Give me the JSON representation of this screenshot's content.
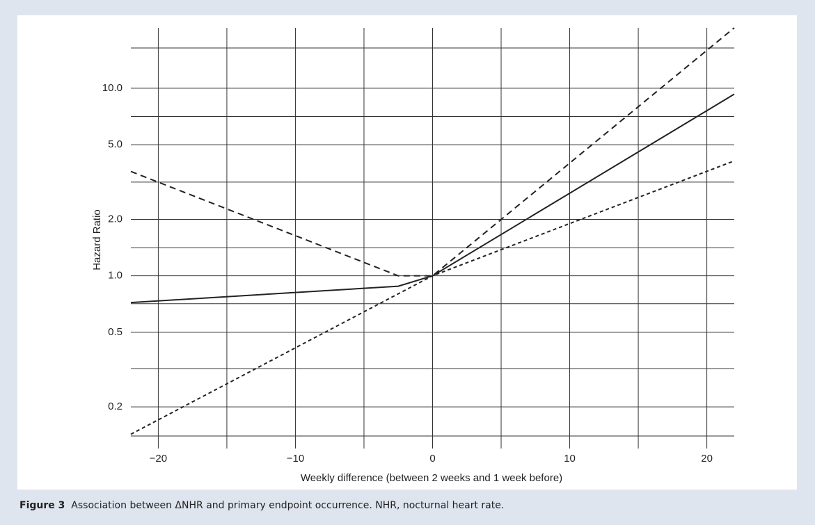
{
  "chart_data": {
    "type": "line",
    "log_y": true,
    "grid": true,
    "color": "#222222",
    "y_label": "Hazard Ratio",
    "x_label": "Weekly difference (between 2 weeks and 1 week before)",
    "xlim": [
      -22,
      22
    ],
    "xticks": [
      {
        "value": -20,
        "label": "−20"
      },
      {
        "value": -10,
        "label": "−10"
      },
      0,
      10,
      20
    ],
    "minor_xgrid": [
      -15,
      -5,
      5,
      15
    ],
    "ylim": [
      0.12,
      21
    ],
    "yticks": [
      {
        "value": 10,
        "label": "10.0"
      },
      {
        "value": 5,
        "label": "5.0"
      },
      {
        "value": 2,
        "label": "2.0"
      },
      {
        "value": 1,
        "label": "1.0"
      },
      0.5,
      0.2
    ],
    "minor_ygrid": [
      16.4,
      7.07,
      3.16,
      1.41,
      0.71,
      0.32,
      0.14
    ],
    "series": [
      {
        "dash": "9,6",
        "x": [
          -22,
          -2.5,
          0,
          22
        ],
        "values": [
          3.6,
          1.0,
          1.0,
          21
        ]
      },
      {
        "dash": "",
        "x": [
          -22,
          -2.5,
          0,
          22
        ],
        "values": [
          0.72,
          0.88,
          1.0,
          9.3
        ]
      },
      {
        "dash": "5,4",
        "x": [
          -22,
          0,
          22
        ],
        "values": [
          0.143,
          1.0,
          4.1
        ]
      }
    ]
  },
  "caption": {
    "label": "Figure 3",
    "text": "Association between ΔNHR and primary endpoint occurrence. NHR, nocturnal heart rate."
  }
}
